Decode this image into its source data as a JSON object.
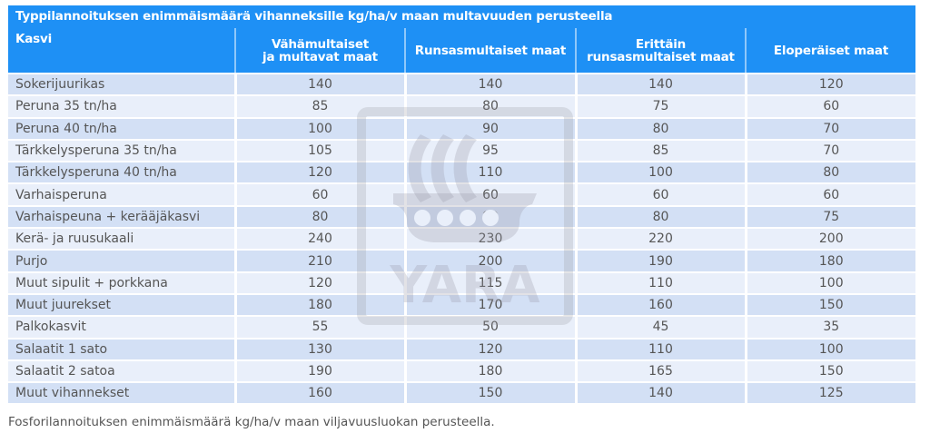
{
  "table": {
    "title": "Typpilannoituksen enimmäismäärä vihanneksille kg/ha/v maan multavuuden perusteella",
    "headers": [
      {
        "line1": "Kasvi",
        "line2": ""
      },
      {
        "line1": "Vähämultaiset",
        "line2": "ja multavat maat"
      },
      {
        "line1": "Runsasmultaiset maat",
        "line2": ""
      },
      {
        "line1": "Erittäin",
        "line2": "runsasmultaiset maat"
      },
      {
        "line1": "Eloperäiset maat",
        "line2": ""
      }
    ],
    "rows": [
      {
        "crop": "Sokerijuurikas",
        "v1": "140",
        "v2": "140",
        "v3": "140",
        "v4": "120"
      },
      {
        "crop": "Peruna 35 tn/ha",
        "v1": "85",
        "v2": "80",
        "v3": "75",
        "v4": "60"
      },
      {
        "crop": "Peruna 40 tn/ha",
        "v1": "100",
        "v2": "90",
        "v3": "80",
        "v4": "70"
      },
      {
        "crop": "Tärkkelysperuna 35 tn/ha",
        "v1": "105",
        "v2": "95",
        "v3": "85",
        "v4": "70"
      },
      {
        "crop": "Tärkkelysperuna 40 tn/ha",
        "v1": "120",
        "v2": "110",
        "v3": "100",
        "v4": "80"
      },
      {
        "crop": "Varhaisperuna",
        "v1": "60",
        "v2": "60",
        "v3": "60",
        "v4": "60"
      },
      {
        "crop": "Varhaispeuna + kerääjäkasvi",
        "v1": "80",
        "v2": "80",
        "v3": "80",
        "v4": "75"
      },
      {
        "crop": "Kerä- ja ruusukaali",
        "v1": "240",
        "v2": "230",
        "v3": "220",
        "v4": "200"
      },
      {
        "crop": "Purjo",
        "v1": "210",
        "v2": "200",
        "v3": "190",
        "v4": "180"
      },
      {
        "crop": "Muut sipulit + porkkana",
        "v1": "120",
        "v2": "115",
        "v3": "110",
        "v4": "100"
      },
      {
        "crop": "Muut juurekset",
        "v1": "180",
        "v2": "170",
        "v3": "160",
        "v4": "150"
      },
      {
        "crop": "Palkokasvit",
        "v1": "55",
        "v2": "50",
        "v3": "45",
        "v4": "35"
      },
      {
        "crop": "Salaatit 1 sato",
        "v1": "130",
        "v2": "120",
        "v3": "110",
        "v4": "100"
      },
      {
        "crop": "Salaatit 2 satoa",
        "v1": "190",
        "v2": "180",
        "v3": "165",
        "v4": "150"
      },
      {
        "crop": "Muut vihannekset",
        "v1": "160",
        "v2": "150",
        "v3": "140",
        "v4": "125"
      }
    ]
  },
  "watermark": {
    "icon": "yara-logo-icon",
    "text": "YARA"
  },
  "footnote": "Fosforilannoituksen enimmäismäärä kg/ha/v maan viljavuusluokan perusteella.",
  "colors": {
    "header_bg": "#1e90f5",
    "row_odd": "#d3e0f5",
    "row_even": "#e9effa",
    "text": "#555555"
  }
}
